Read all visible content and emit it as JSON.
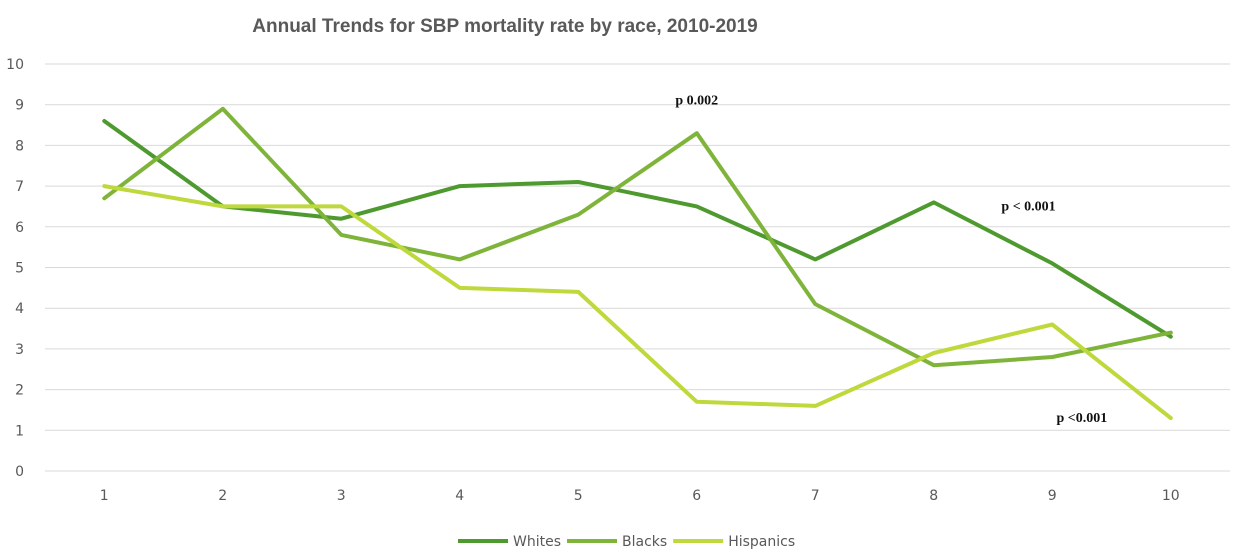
{
  "chart_data": {
    "type": "line",
    "title": "Annual Trends for SBP mortality rate by race, 2010-2019",
    "xlabel": "",
    "ylabel": "",
    "categories": [
      "1",
      "2",
      "3",
      "4",
      "5",
      "6",
      "7",
      "8",
      "9",
      "10"
    ],
    "ylim": [
      0,
      10
    ],
    "yticks": [
      "0",
      "1",
      "2",
      "3",
      "4",
      "5",
      "6",
      "7",
      "8",
      "9",
      "10"
    ],
    "grid": true,
    "legend": "bottom",
    "series": [
      {
        "name": "Whites",
        "color": "#4e9a2f",
        "values": [
          8.6,
          6.5,
          6.2,
          7.0,
          7.1,
          6.5,
          5.2,
          6.6,
          5.1,
          3.3
        ]
      },
      {
        "name": "Blacks",
        "color": "#7fb43a",
        "values": [
          6.7,
          8.9,
          5.8,
          5.2,
          6.3,
          8.3,
          4.1,
          2.6,
          2.8,
          3.4
        ]
      },
      {
        "name": "Hispanics",
        "color": "#bfd83c",
        "values": [
          7.0,
          6.5,
          6.5,
          4.5,
          4.4,
          1.7,
          1.6,
          2.9,
          3.6,
          1.3
        ]
      }
    ],
    "annotations": [
      {
        "text": "p 0.002",
        "x": 6,
        "y": 9.0
      },
      {
        "text": "p < 0.001",
        "x": 8.8,
        "y": 6.4
      },
      {
        "text": "p <0.001",
        "x": 9.25,
        "y": 1.2
      }
    ]
  }
}
